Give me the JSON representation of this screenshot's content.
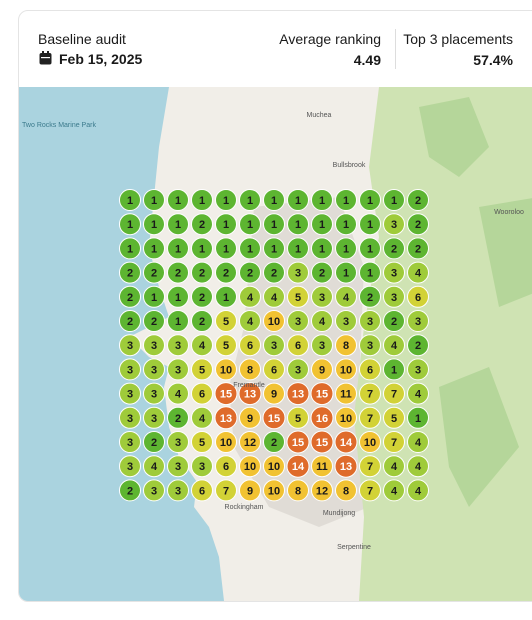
{
  "header": {
    "title": "Baseline audit",
    "date": "Feb 15, 2025"
  },
  "stats": [
    {
      "label": "Average ranking",
      "value": "4.49"
    },
    {
      "label": "Top 3 placements",
      "value": "57.4%"
    }
  ],
  "map_labels": [
    "Two Rocks Marine Park",
    "Muchea",
    "Bullsbrook",
    "Fremantle",
    "Rockingham",
    "Mundijong",
    "Serpentine",
    "Wooroloo"
  ],
  "grid": [
    [
      1,
      1,
      1,
      1,
      1,
      1,
      1,
      1,
      1,
      1,
      1,
      1,
      2
    ],
    [
      1,
      1,
      1,
      2,
      1,
      1,
      1,
      1,
      1,
      1,
      1,
      3,
      2
    ],
    [
      1,
      1,
      1,
      1,
      1,
      1,
      1,
      1,
      1,
      1,
      1,
      2,
      2
    ],
    [
      2,
      2,
      2,
      2,
      2,
      2,
      2,
      3,
      2,
      1,
      1,
      3,
      4
    ],
    [
      2,
      1,
      1,
      2,
      1,
      4,
      4,
      5,
      3,
      4,
      2,
      3,
      6
    ],
    [
      2,
      2,
      1,
      2,
      5,
      4,
      10,
      3,
      4,
      3,
      3,
      2,
      3
    ],
    [
      3,
      3,
      3,
      4,
      5,
      6,
      3,
      6,
      3,
      8,
      3,
      4,
      2
    ],
    [
      3,
      3,
      3,
      5,
      10,
      8,
      6,
      3,
      9,
      10,
      6,
      1,
      3
    ],
    [
      3,
      3,
      4,
      6,
      15,
      13,
      9,
      13,
      15,
      11,
      7,
      7,
      4
    ],
    [
      3,
      3,
      2,
      4,
      13,
      9,
      15,
      5,
      16,
      10,
      7,
      5,
      1
    ],
    [
      3,
      2,
      3,
      5,
      10,
      12,
      2,
      15,
      15,
      14,
      10,
      7,
      4
    ],
    [
      3,
      4,
      3,
      3,
      6,
      10,
      10,
      14,
      11,
      13,
      7,
      4,
      4
    ],
    [
      2,
      3,
      3,
      6,
      7,
      9,
      10,
      8,
      12,
      8,
      7,
      4,
      4
    ]
  ]
}
